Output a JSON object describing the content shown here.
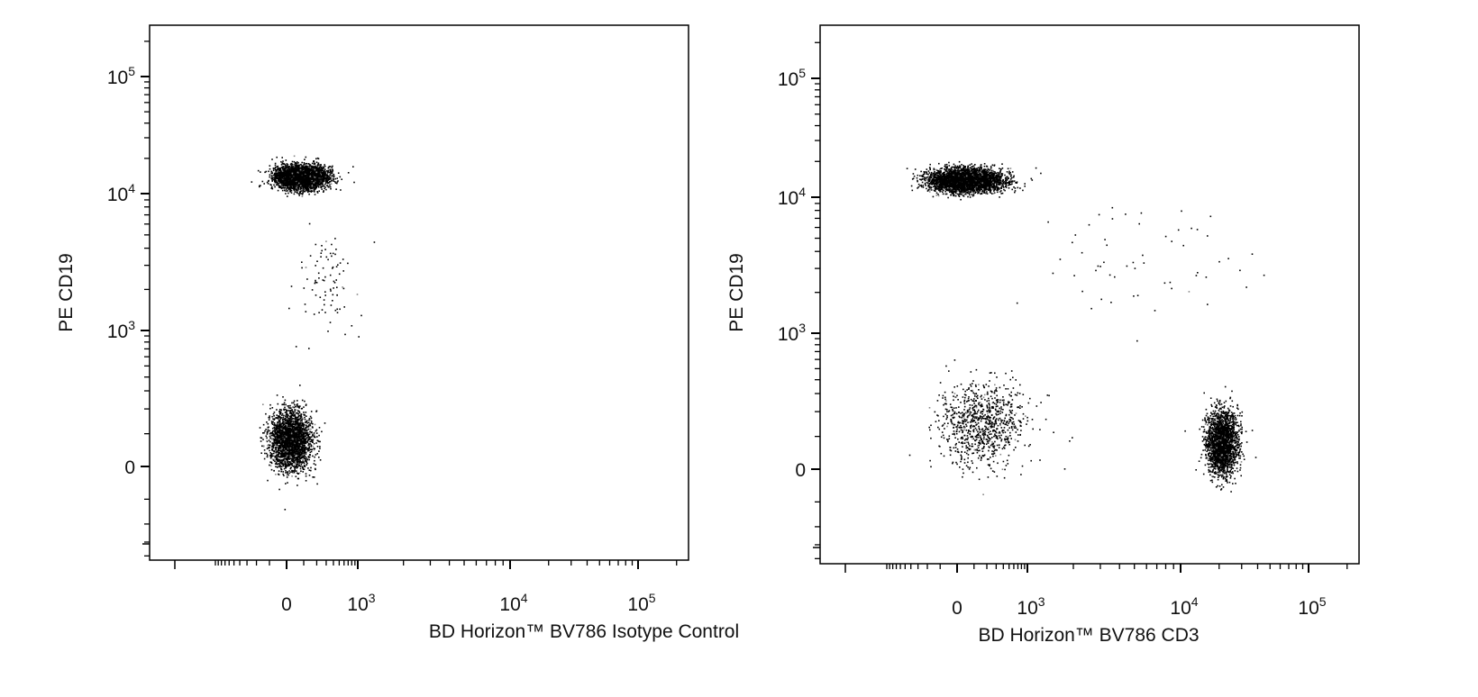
{
  "chart_data": [
    {
      "type": "scatter",
      "xlabel": "BD Horizon™ BV786 Isotype Control",
      "ylabel": "PE CD19",
      "x_scale": "biexponential",
      "y_scale": "biexponential",
      "x_ticks": [
        {
          "value": 0,
          "label": "0"
        },
        {
          "value": 1000,
          "base": "10",
          "exp": "3"
        },
        {
          "value": 10000,
          "base": "10",
          "exp": "4"
        },
        {
          "value": 100000,
          "base": "10",
          "exp": "5"
        }
      ],
      "y_ticks": [
        {
          "value": 0,
          "label": "0"
        },
        {
          "value": 1000,
          "base": "10",
          "exp": "3"
        },
        {
          "value": 10000,
          "base": "10",
          "exp": "4"
        },
        {
          "value": 100000,
          "base": "10",
          "exp": "5"
        }
      ],
      "point_color": "#000000",
      "populations": [
        {
          "count": 4200,
          "x_center": 80,
          "y_center": 14000,
          "x_spread": 0.9,
          "y_spread": 0.22
        },
        {
          "count": 2600,
          "x_center": 20,
          "y_center": 80,
          "x_spread": 0.75,
          "y_spread": 0.55
        },
        {
          "count": 90,
          "x_center": 300,
          "y_center": 2500,
          "x_spread": 1.0,
          "y_spread": 0.9
        }
      ]
    },
    {
      "type": "scatter",
      "xlabel": "BD Horizon™ BV786 CD3",
      "ylabel": "PE CD19",
      "x_scale": "biexponential",
      "y_scale": "biexponential",
      "x_ticks": [
        {
          "value": 0,
          "label": "0"
        },
        {
          "value": 1000,
          "base": "10",
          "exp": "3"
        },
        {
          "value": 10000,
          "base": "10",
          "exp": "4"
        },
        {
          "value": 100000,
          "base": "10",
          "exp": "5"
        }
      ],
      "y_ticks": [
        {
          "value": 0,
          "label": "0"
        },
        {
          "value": 1000,
          "base": "10",
          "exp": "3"
        },
        {
          "value": 10000,
          "base": "10",
          "exp": "4"
        },
        {
          "value": 100000,
          "base": "10",
          "exp": "5"
        }
      ],
      "point_color": "#000000",
      "populations": [
        {
          "count": 4200,
          "x_center": 50,
          "y_center": 14000,
          "x_spread": 1.3,
          "y_spread": 0.22
        },
        {
          "count": 2200,
          "x_center": 21000,
          "y_center": 80,
          "x_spread": 0.28,
          "y_spread": 0.6
        },
        {
          "count": 900,
          "x_center": 150,
          "y_center": 150,
          "x_spread": 1.6,
          "y_spread": 0.8
        },
        {
          "count": 60,
          "x_center": 5000,
          "y_center": 3000,
          "x_spread": 1.5,
          "y_spread": 1.0
        }
      ]
    }
  ]
}
